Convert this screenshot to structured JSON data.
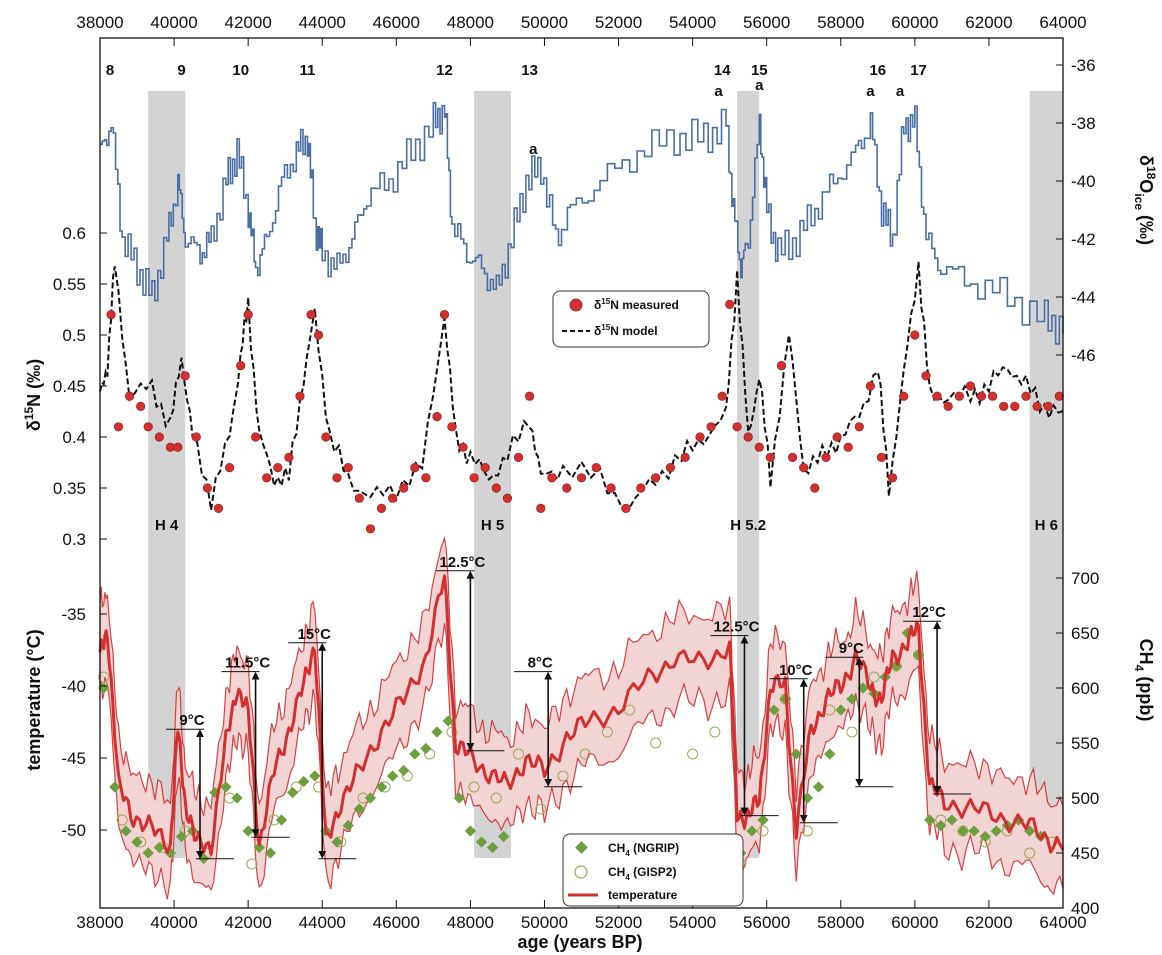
{
  "chart_data": {
    "type": "line",
    "x_axis": {
      "label": "age (years BP)",
      "range": [
        38000,
        64000
      ],
      "ticks": [
        38000,
        40000,
        42000,
        44000,
        46000,
        48000,
        50000,
        52000,
        54000,
        56000,
        58000,
        60000,
        62000,
        64000
      ]
    },
    "y_axes": {
      "d18O": {
        "label_main": "δ",
        "label_sup": "18",
        "label_rest": "O",
        "label_sub": "ice",
        "label_unit": " (‰)",
        "range": [
          -47,
          -36
        ],
        "ticks": [
          -36,
          -38,
          -40,
          -42,
          -44,
          -46
        ]
      },
      "d15N": {
        "label_main": "δ",
        "label_sup": "15",
        "label_rest": "N (‰)",
        "range": [
          0.3,
          0.6
        ],
        "ticks": [
          "0.6",
          "0.55",
          "0.5",
          "0.45",
          "0.4",
          "0.35",
          "0.3"
        ]
      },
      "temperature": {
        "label": "temperature (°C)",
        "range": [
          -53,
          -32
        ],
        "ticks": [
          -35,
          -40,
          -45,
          -50
        ]
      },
      "CH4": {
        "label_main": "CH",
        "label_sub": "4",
        "label_rest": " (ppb)",
        "range": [
          400,
          700
        ],
        "ticks": [
          400,
          450,
          500,
          550,
          600,
          650,
          700
        ]
      }
    },
    "interstadials": [
      {
        "label": "8",
        "x": 38000
      },
      {
        "label": "9",
        "x": 40200
      },
      {
        "label": "10",
        "x": 41800
      },
      {
        "label": "11",
        "x": 43600
      },
      {
        "label": "12",
        "x": 47300
      },
      {
        "label": "13",
        "x": 49600
      },
      {
        "label": "14",
        "x": 54800
      },
      {
        "label": "15",
        "x": 55800
      },
      {
        "label": "16",
        "x": 59000
      },
      {
        "label": "17",
        "x": 60100
      }
    ],
    "a_markers": [
      {
        "label": "a",
        "x": 49700,
        "d18O": -39.2
      },
      {
        "label": "a",
        "x": 54700,
        "d18O": -37.2
      },
      {
        "label": "a",
        "x": 55800,
        "d18O": -37.0
      },
      {
        "label": "a",
        "x": 58800,
        "d18O": -37.2
      },
      {
        "label": "a",
        "x": 59600,
        "d18O": -37.2
      }
    ],
    "heinrich": [
      {
        "label": "H 4",
        "from": 39300,
        "to": 40300
      },
      {
        "label": "H 5",
        "from": 48100,
        "to": 49100
      },
      {
        "label": "H 5.2",
        "from": 55200,
        "to": 55800
      },
      {
        "label": "H 6",
        "from": 63100,
        "to": 64000
      }
    ],
    "d18O": {
      "name": "δ18O ice",
      "color": "#4a6fa5",
      "x": [
        38000,
        38300,
        38600,
        39000,
        39400,
        39800,
        40100,
        40300,
        40700,
        41000,
        41400,
        41700,
        42000,
        42200,
        42500,
        42900,
        43300,
        43600,
        43800,
        44000,
        44400,
        44800,
        45200,
        45800,
        46400,
        47000,
        47300,
        47500,
        47900,
        48300,
        48700,
        49100,
        49500,
        49900,
        50300,
        50700,
        51500,
        52500,
        53500,
        54300,
        54900,
        55100,
        55300,
        55500,
        55800,
        56000,
        56300,
        56800,
        57300,
        57800,
        58400,
        58800,
        59100,
        59400,
        59700,
        60000,
        60300,
        60700,
        61500,
        62500,
        63500,
        64000
      ],
      "y": [
        -39,
        -38,
        -42,
        -43,
        -44,
        -42,
        -40,
        -42,
        -42.5,
        -42,
        -40,
        -39,
        -41,
        -43,
        -42,
        -40,
        -39,
        -38.5,
        -41.5,
        -42.5,
        -43,
        -42,
        -40.5,
        -40,
        -39,
        -38,
        -37.5,
        -41.5,
        -42.5,
        -43,
        -43.8,
        -42,
        -40,
        -39.5,
        -42,
        -41,
        -40,
        -39,
        -38.5,
        -38.5,
        -38,
        -41,
        -43,
        -42,
        -38,
        -41,
        -42.5,
        -42,
        -41,
        -40,
        -39,
        -38,
        -41,
        -42,
        -38,
        -38,
        -42,
        -43,
        -43.5,
        -44,
        -44.8,
        -45
      ]
    },
    "d15N_model": {
      "name": "δ15N model",
      "x": [
        38000,
        38200,
        38400,
        38800,
        39400,
        39900,
        40200,
        40500,
        41000,
        41500,
        41800,
        42000,
        42300,
        42700,
        43100,
        43500,
        43800,
        44200,
        44700,
        45300,
        46000,
        46700,
        47300,
        47600,
        48000,
        48500,
        49000,
        49600,
        49900,
        50500,
        51500,
        52300,
        53000,
        53700,
        54300,
        54900,
        55200,
        55500,
        55800,
        56100,
        56600,
        57000,
        57500,
        58000,
        58500,
        59000,
        59300,
        59700,
        60100,
        60400,
        60900,
        61500,
        62000,
        62500,
        63000,
        63500,
        64000
      ],
      "y": [
        0.44,
        0.47,
        0.57,
        0.44,
        0.45,
        0.41,
        0.48,
        0.4,
        0.34,
        0.4,
        0.48,
        0.53,
        0.4,
        0.36,
        0.36,
        0.46,
        0.52,
        0.4,
        0.36,
        0.34,
        0.35,
        0.37,
        0.52,
        0.4,
        0.38,
        0.36,
        0.38,
        0.42,
        0.36,
        0.37,
        0.36,
        0.33,
        0.36,
        0.38,
        0.4,
        0.42,
        0.56,
        0.4,
        0.46,
        0.36,
        0.5,
        0.37,
        0.38,
        0.4,
        0.42,
        0.47,
        0.35,
        0.46,
        0.57,
        0.44,
        0.44,
        0.44,
        0.45,
        0.47,
        0.45,
        0.43,
        0.42
      ]
    },
    "d15N_measured": {
      "name": "δ15N measured",
      "color": "#d32f2f",
      "x": [
        38300,
        38500,
        38800,
        39100,
        39300,
        39600,
        39900,
        40100,
        40300,
        40600,
        40900,
        41200,
        41500,
        41800,
        42000,
        42200,
        42500,
        42800,
        43100,
        43400,
        43700,
        43900,
        44100,
        44400,
        44700,
        45000,
        45300,
        45600,
        45900,
        46200,
        46500,
        46800,
        47100,
        47300,
        47500,
        47800,
        48100,
        48400,
        48700,
        49000,
        49300,
        49600,
        49900,
        50200,
        50600,
        51000,
        51400,
        51800,
        52200,
        52600,
        53000,
        53400,
        53800,
        54200,
        54500,
        54800,
        55000,
        55200,
        55500,
        55800,
        56100,
        56400,
        56700,
        57000,
        57300,
        57600,
        57900,
        58200,
        58500,
        58800,
        59100,
        59400,
        59700,
        60000,
        60300,
        60600,
        60900,
        61200,
        61500,
        61800,
        62100,
        62400,
        62700,
        63000,
        63300,
        63600,
        63900
      ],
      "y": [
        0.52,
        0.41,
        0.44,
        0.43,
        0.41,
        0.4,
        0.39,
        0.39,
        0.46,
        0.4,
        0.35,
        0.33,
        0.37,
        0.47,
        0.52,
        0.4,
        0.36,
        0.37,
        0.38,
        0.44,
        0.52,
        0.5,
        0.4,
        0.36,
        0.37,
        0.34,
        0.31,
        0.33,
        0.34,
        0.35,
        0.37,
        0.36,
        0.42,
        0.52,
        0.41,
        0.39,
        0.36,
        0.37,
        0.35,
        0.34,
        0.38,
        0.44,
        0.33,
        0.36,
        0.35,
        0.36,
        0.37,
        0.35,
        0.33,
        0.35,
        0.36,
        0.37,
        0.38,
        0.4,
        0.41,
        0.44,
        0.53,
        0.41,
        0.4,
        0.39,
        0.38,
        0.47,
        0.38,
        0.37,
        0.35,
        0.38,
        0.4,
        0.39,
        0.41,
        0.45,
        0.38,
        0.36,
        0.44,
        0.5,
        0.46,
        0.44,
        0.43,
        0.44,
        0.45,
        0.44,
        0.44,
        0.43,
        0.43,
        0.44,
        0.43,
        0.43,
        0.44
      ]
    },
    "temperature": {
      "name": "temperature",
      "color": "#d32f2f",
      "band_color": "#f2d4d4",
      "x": [
        38000,
        38200,
        38500,
        38900,
        39400,
        39900,
        40100,
        40300,
        40600,
        41000,
        41400,
        41700,
        42000,
        42300,
        42700,
        43100,
        43500,
        43800,
        44100,
        44500,
        45000,
        45600,
        46200,
        46800,
        47300,
        47600,
        48000,
        48500,
        49000,
        49500,
        50000,
        50600,
        51200,
        52000,
        52800,
        53500,
        54300,
        55000,
        55200,
        55500,
        55800,
        56100,
        56500,
        56800,
        57200,
        57600,
        58000,
        58400,
        58800,
        59100,
        59400,
        59800,
        60100,
        60400,
        60800,
        61500,
        62200,
        62900,
        63500,
        64000
      ],
      "y": [
        -38,
        -36,
        -47,
        -49,
        -50,
        -51,
        -43,
        -48,
        -51,
        -51,
        -44,
        -40,
        -42,
        -51,
        -46,
        -43,
        -40,
        -37,
        -51,
        -48,
        -46,
        -43,
        -41,
        -38,
        -32.5,
        -44,
        -45,
        -46,
        -47,
        -45,
        -46,
        -43.5,
        -42.5,
        -41.5,
        -39.5,
        -38,
        -38.5,
        -37,
        -49,
        -49,
        -48,
        -40,
        -40,
        -50,
        -43,
        -41,
        -40,
        -38,
        -40,
        -41,
        -38,
        -37,
        -36,
        -47,
        -48,
        -48.5,
        -49,
        -49.5,
        -50.5,
        -51
      ]
    },
    "ch4_ngrip": {
      "name": "CH4 (NGRIP)",
      "color": "#6e9f3e",
      "x": [
        38100,
        38400,
        38700,
        39000,
        39300,
        39600,
        39900,
        40200,
        40500,
        40800,
        41100,
        41400,
        41700,
        42000,
        42300,
        42600,
        42900,
        43200,
        43500,
        43800,
        44100,
        44400,
        44700,
        45000,
        45300,
        45600,
        45900,
        46200,
        46500,
        46800,
        47100,
        47400,
        47700,
        48000,
        48300,
        48600,
        48900,
        55300,
        55600,
        55900,
        56200,
        56500,
        56800,
        57100,
        57400,
        57700,
        58000,
        58300,
        58600,
        58900,
        59200,
        59500,
        59800,
        60100,
        60400,
        60700,
        61000,
        61300,
        61600,
        61900,
        62200,
        62500,
        62800,
        63100,
        63400
      ],
      "y": [
        600,
        510,
        470,
        460,
        450,
        455,
        450,
        465,
        470,
        445,
        505,
        510,
        500,
        470,
        455,
        450,
        480,
        505,
        515,
        520,
        470,
        460,
        475,
        490,
        500,
        510,
        520,
        525,
        540,
        545,
        560,
        570,
        500,
        470,
        460,
        455,
        465,
        450,
        470,
        480,
        580,
        590,
        540,
        500,
        510,
        540,
        580,
        590,
        600,
        595,
        610,
        620,
        650,
        630,
        480,
        475,
        480,
        470,
        470,
        465,
        470,
        475,
        480,
        470,
        465
      ]
    },
    "ch4_gisp2": {
      "name": "CH4 (GISP2)",
      "color": "#9aab55",
      "x": [
        38100,
        38600,
        39100,
        39700,
        40300,
        40900,
        41500,
        42100,
        42700,
        43300,
        43900,
        44500,
        45100,
        45700,
        46300,
        46900,
        47500,
        48100,
        48700,
        49300,
        49900,
        50500,
        51100,
        51700,
        52300,
        53000,
        54000,
        54600,
        55300,
        55900,
        56500,
        57100,
        57700,
        58300,
        58900,
        59500,
        60100,
        60700,
        61300,
        61900,
        62500,
        63100,
        63700
      ],
      "y": [
        610,
        480,
        460,
        455,
        470,
        450,
        500,
        440,
        480,
        510,
        510,
        460,
        500,
        510,
        520,
        540,
        560,
        510,
        500,
        540,
        490,
        520,
        540,
        560,
        580,
        550,
        540,
        560,
        440,
        470,
        590,
        470,
        580,
        560,
        610,
        620,
        630,
        480,
        470,
        460,
        470,
        450,
        460
      ]
    },
    "amplitudes": [
      {
        "label": "9°C",
        "x": 40700,
        "from": -43,
        "to": -52
      },
      {
        "label": "11.5°C",
        "x": 42200,
        "from": -39,
        "to": -50.5
      },
      {
        "label": "15°C",
        "x": 44000,
        "from": -37,
        "to": -52
      },
      {
        "label": "12.5°C",
        "x": 48000,
        "from": -32,
        "to": -44.5
      },
      {
        "label": "8°C",
        "x": 50100,
        "from": -39,
        "to": -47
      },
      {
        "label": "12.5°C",
        "x": 55400,
        "from": -36.5,
        "to": -49
      },
      {
        "label": "10°C",
        "x": 57000,
        "from": -39.5,
        "to": -49.5
      },
      {
        "label": "9°C",
        "x": 58500,
        "from": -38,
        "to": -47
      },
      {
        "label": "12°C",
        "x": 60600,
        "from": -35.5,
        "to": -47.5
      }
    ],
    "legend_top": {
      "measured": {
        "main": "δ",
        "sup": "15",
        "rest": "N measured"
      },
      "model": {
        "main": "δ",
        "sup": "15",
        "rest": "N model"
      }
    },
    "legend_bottom": {
      "ngrip": {
        "main": "CH",
        "sub": "4",
        "rest": " (NGRIP)"
      },
      "gisp2": {
        "main": "CH",
        "sub": "4",
        "rest": " (GISP2)"
      },
      "temperature": "temperature"
    }
  }
}
